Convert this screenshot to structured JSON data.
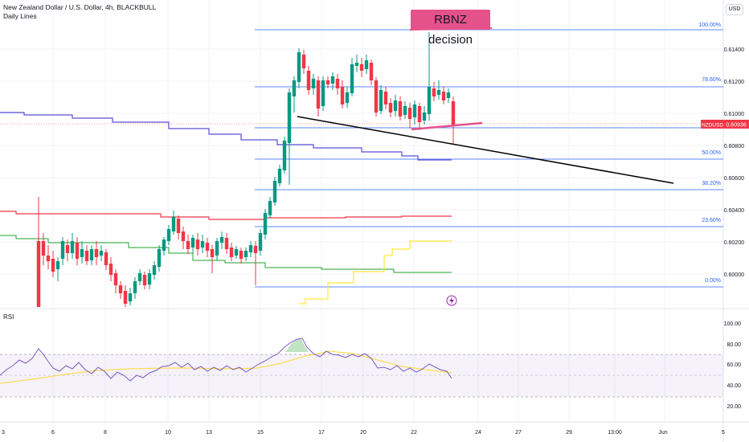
{
  "header": {
    "symbol_title": "New Zealand Dollar / U.S. Dollar, 4h, BLACKBULL",
    "indicator": "Daily Lines"
  },
  "currency_button": "USD",
  "annotation": "RBNZ decision",
  "price_axis": {
    "labels": [
      "0.61400",
      "0.61200",
      "0.61000",
      "0.60800",
      "0.60600",
      "0.60400",
      "0.60200",
      "0.60000"
    ],
    "symbol_tag": "NZDUSD",
    "last_price": "0.60936",
    "colors": {
      "tag": "#f23645"
    }
  },
  "fib_levels": [
    "100.00%",
    "78.60%",
    "50.00%",
    "38.20%",
    "23.60%",
    "0.00%"
  ],
  "rsi": {
    "label": "RSI",
    "scale": [
      "100.00",
      "80.00",
      "60.00",
      "40.00",
      "20.00"
    ]
  },
  "time_axis": [
    "3",
    "6",
    "8",
    "10",
    "13",
    "15",
    "17",
    "20",
    "22",
    "24",
    "27",
    "29",
    "13:00",
    "Jun",
    "5"
  ],
  "icons": {
    "event": "lightning-icon"
  }
}
